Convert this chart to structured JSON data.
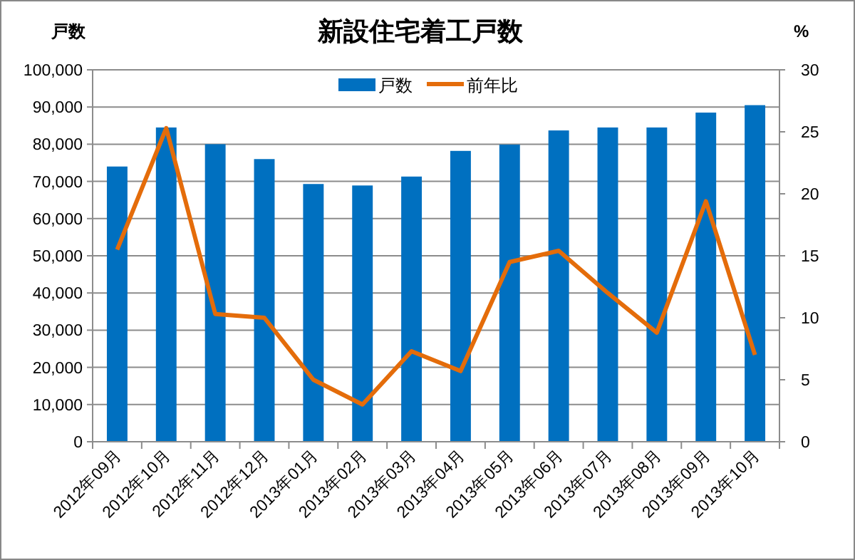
{
  "chart_data": {
    "type": "bar",
    "title": "新設住宅着工戸数",
    "ylabel": "戸数",
    "y2label": "%",
    "categories": [
      "2012年09月",
      "2012年10月",
      "2012年11月",
      "2012年12月",
      "2013年01月",
      "2013年02月",
      "2013年03月",
      "2013年04月",
      "2013年05月",
      "2013年06月",
      "2013年07月",
      "2013年08月",
      "2013年09月",
      "2013年10月"
    ],
    "series": [
      {
        "name": "戸数",
        "color": "#0070c0",
        "values": [
          74000,
          84500,
          80000,
          76000,
          69300,
          68900,
          71300,
          78200,
          79900,
          83700,
          84500,
          84500,
          88500,
          90500
        ]
      },
      {
        "name": "前年比",
        "type": "line",
        "axis": "y2",
        "color": "#e46c0a",
        "values": [
          15.5,
          25.3,
          10.3,
          10.0,
          5.0,
          3.0,
          7.3,
          5.7,
          14.5,
          15.4,
          12.0,
          8.8,
          19.4,
          7.0
        ]
      }
    ],
    "ylim": [
      0,
      100000
    ],
    "yticks": [
      {
        "value": 0,
        "label": "0"
      },
      {
        "value": 10000,
        "label": "10,000"
      },
      {
        "value": 20000,
        "label": "20,000"
      },
      {
        "value": 30000,
        "label": "30,000"
      },
      {
        "value": 40000,
        "label": "40,000"
      },
      {
        "value": 50000,
        "label": "50,000"
      },
      {
        "value": 60000,
        "label": "60,000"
      },
      {
        "value": 70000,
        "label": "70,000"
      },
      {
        "value": 80000,
        "label": "80,000"
      },
      {
        "value": 90000,
        "label": "90,000"
      },
      {
        "value": 100000,
        "label": "100,000"
      }
    ],
    "y2lim": [
      0,
      30
    ],
    "y2ticks": [
      0,
      5,
      10,
      15,
      20,
      25,
      30
    ],
    "grid": "y",
    "legend": "top",
    "marker": "none"
  }
}
